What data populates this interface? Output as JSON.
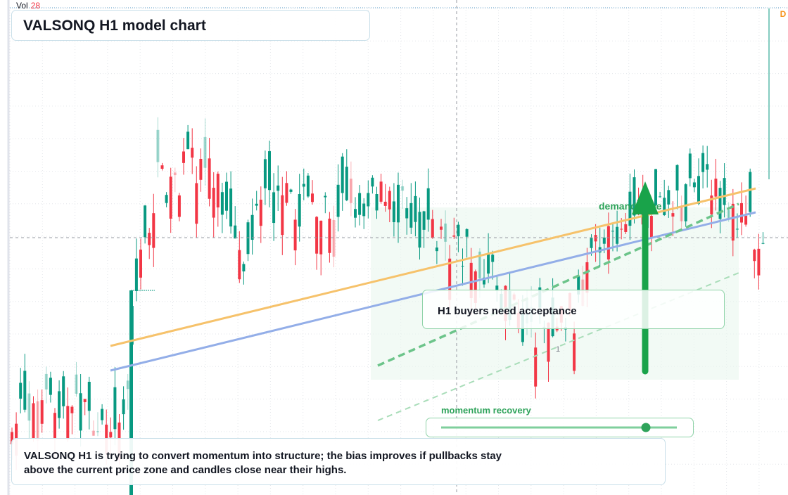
{
  "header": {
    "volume_label": "Vol",
    "volume_value": 28,
    "title": "VALSONQ H1 model chart"
  },
  "annotations": {
    "zone": "demand zone",
    "callout": "H1 buyers need acceptance",
    "slider_label": "momentum recovery",
    "marker": "1",
    "badge": "D"
  },
  "summary": {
    "line1": "VALSONQ H1 is trying to convert momentum into structure; the bias improves if pullbacks stay",
    "line2": "above the current price zone and candles close near their highs."
  }
}
